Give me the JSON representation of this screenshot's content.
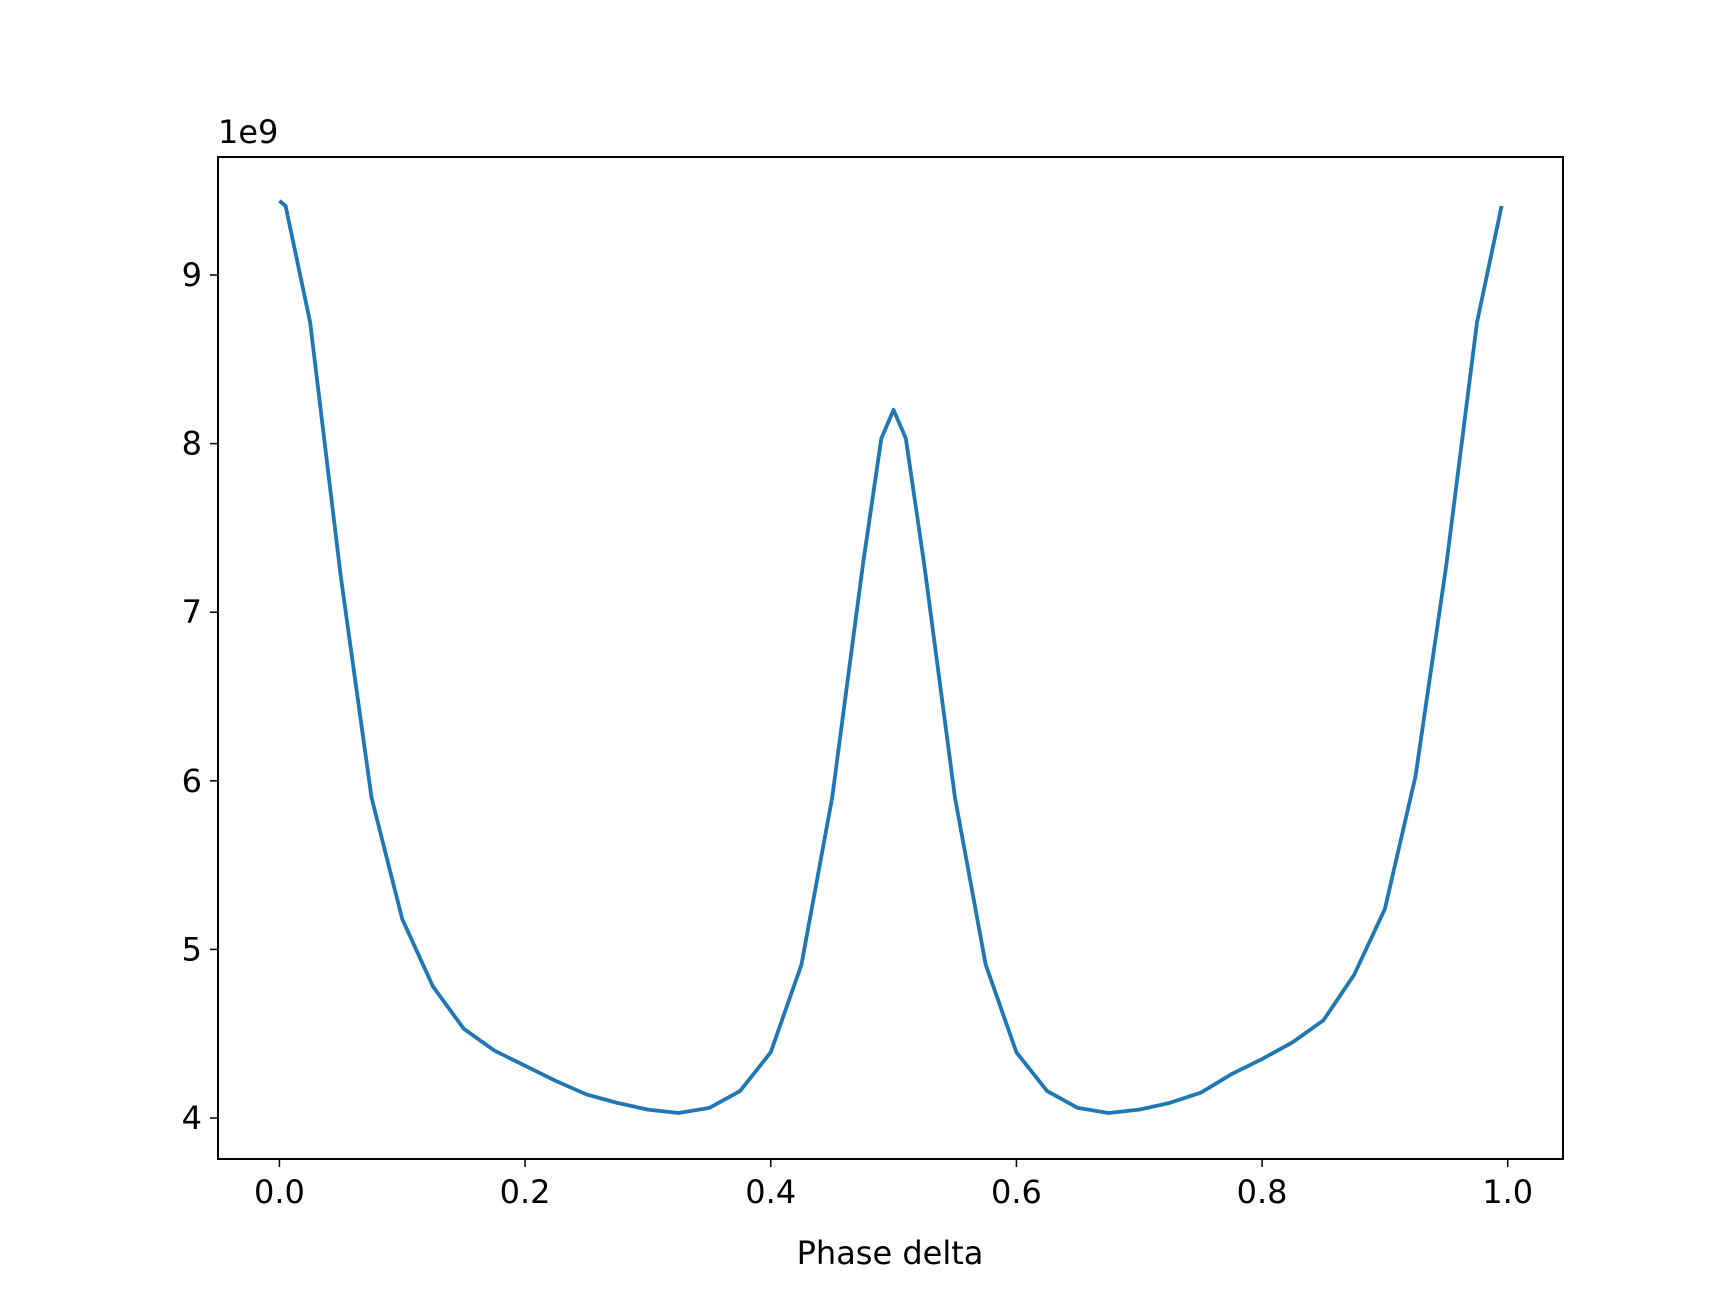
{
  "chart_data": {
    "type": "line",
    "x_label": "Phase delta",
    "y_offset_label": "1e9",
    "x": [
      0,
      0.005,
      0.025,
      0.05,
      0.075,
      0.1,
      0.125,
      0.15,
      0.175,
      0.2,
      0.225,
      0.25,
      0.275,
      0.3,
      0.325,
      0.35,
      0.375,
      0.4,
      0.425,
      0.45,
      0.475,
      0.49,
      0.5,
      0.51,
      0.525,
      0.55,
      0.575,
      0.6,
      0.625,
      0.65,
      0.675,
      0.7,
      0.725,
      0.75,
      0.775,
      0.8,
      0.825,
      0.85,
      0.875,
      0.9,
      0.925,
      0.95,
      0.975,
      0.995
    ],
    "series": [
      {
        "color": "#1f77b4",
        "values": [
          9440000000,
          9410000000,
          8720000000,
          7210000000,
          5900000000,
          5180000000,
          4780000000,
          4530000000,
          4400000000,
          4310000000,
          4220000000,
          4140000000,
          4090000000,
          4050000000,
          4030000000,
          4060000000,
          4160000000,
          4390000000,
          4910000000,
          5900000000,
          7280000000,
          8030000000,
          8200000000,
          8030000000,
          7280000000,
          5900000000,
          4910000000,
          4390000000,
          4160000000,
          4060000000,
          4030000000,
          4050000000,
          4090000000,
          4150000000,
          4260000000,
          4350000000,
          4450000000,
          4580000000,
          4850000000,
          5240000000,
          6030000000,
          7280000000,
          8720000000,
          9410000000
        ]
      }
    ],
    "xlim": [
      -0.05,
      1.045
    ],
    "ylim": [
      3757000000,
      9700000000
    ],
    "xticks": [
      {
        "value": 0,
        "label": "0.0"
      },
      0.2,
      0.4,
      0.6,
      0.8,
      {
        "value": 1,
        "label": "1.0"
      }
    ],
    "yticks": [
      {
        "value": 4000000000,
        "label": "4"
      },
      {
        "value": 5000000000,
        "label": "5"
      },
      {
        "value": 6000000000,
        "label": "6"
      },
      {
        "value": 7000000000,
        "label": "7"
      },
      {
        "value": 8000000000,
        "label": "8"
      },
      {
        "value": 9000000000,
        "label": "9"
      }
    ],
    "grid": false
  }
}
